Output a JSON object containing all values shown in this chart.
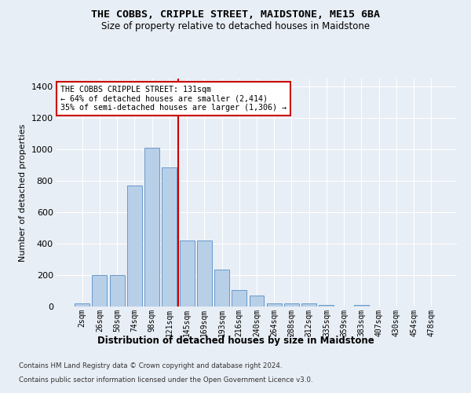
{
  "title": "THE COBBS, CRIPPLE STREET, MAIDSTONE, ME15 6BA",
  "subtitle": "Size of property relative to detached houses in Maidstone",
  "xlabel": "Distribution of detached houses by size in Maidstone",
  "ylabel": "Number of detached properties",
  "categories": [
    "2sqm",
    "26sqm",
    "50sqm",
    "74sqm",
    "98sqm",
    "121sqm",
    "145sqm",
    "169sqm",
    "193sqm",
    "216sqm",
    "240sqm",
    "264sqm",
    "288sqm",
    "312sqm",
    "335sqm",
    "359sqm",
    "383sqm",
    "407sqm",
    "430sqm",
    "454sqm",
    "478sqm"
  ],
  "values": [
    20,
    200,
    200,
    770,
    1010,
    885,
    420,
    420,
    235,
    105,
    68,
    20,
    20,
    20,
    12,
    0,
    10,
    0,
    0,
    0,
    0
  ],
  "bar_color": "#b8cfe8",
  "bar_edgecolor": "#6699cc",
  "vline_x_index": 5,
  "vline_color": "#cc0000",
  "annotation_line1": "THE COBBS CRIPPLE STREET: 131sqm",
  "annotation_line2": "← 64% of detached houses are smaller (2,414)",
  "annotation_line3": "35% of semi-detached houses are larger (1,306) →",
  "annotation_box_color": "#ffffff",
  "annotation_box_edgecolor": "#cc0000",
  "ylim": [
    0,
    1450
  ],
  "yticks": [
    0,
    200,
    400,
    600,
    800,
    1000,
    1200,
    1400
  ],
  "background_color": "#e8eef5",
  "grid_color": "#ffffff",
  "footer1": "Contains HM Land Registry data © Crown copyright and database right 2024.",
  "footer2": "Contains public sector information licensed under the Open Government Licence v3.0."
}
